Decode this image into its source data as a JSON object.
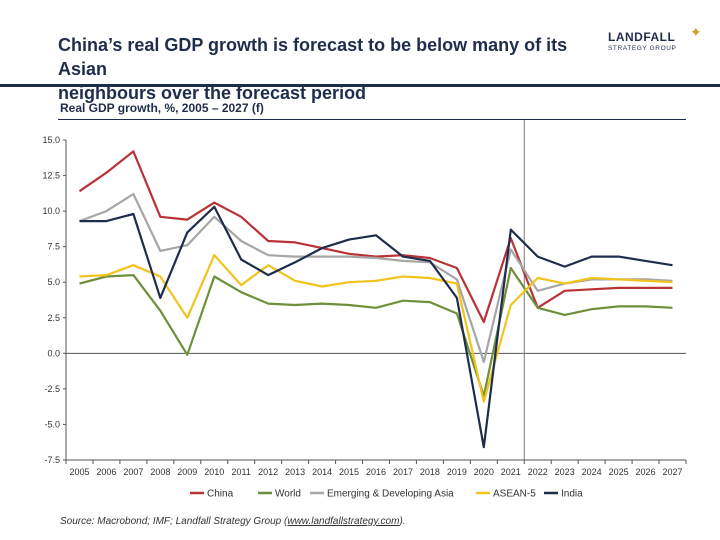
{
  "header": {
    "title_line1": "China’s real GDP growth is forecast to be below many of its Asian",
    "title_line2": "neighbours over the forecast period",
    "subtitle": "Real GDP growth, %, 2005 – 2027 (f)"
  },
  "logo": {
    "name": "LANDFALL",
    "sub": "STRATEGY GROUP",
    "star": "✦"
  },
  "source": {
    "prefix": "Source: Macrobond; IMF; Landfall Strategy Group (",
    "link": "www.landfallstrategy.com",
    "suffix": ")."
  },
  "chart_data": {
    "type": "line",
    "title": "Real GDP growth, %, 2005 – 2027 (f)",
    "xlabel": "",
    "ylabel": "",
    "categories": [
      "2005",
      "2006",
      "2007",
      "2008",
      "2009",
      "2010",
      "2011",
      "2012",
      "2013",
      "2014",
      "2015",
      "2016",
      "2017",
      "2018",
      "2019",
      "2020",
      "2021",
      "2022",
      "2023",
      "2024",
      "2025",
      "2026",
      "2027"
    ],
    "ylim": [
      -7.5,
      15.0
    ],
    "yticks": [
      15.0,
      12.5,
      10.0,
      7.5,
      5.0,
      2.5,
      0.0,
      -2.5,
      -5.0,
      -7.5
    ],
    "ytick_labels": [
      "15.0",
      "12.5",
      "10.0",
      "7.5",
      "5.0",
      "2.5",
      "0.0",
      "-2.5",
      "-5.0",
      "-7.5"
    ],
    "forecast_start": "2022",
    "legend_position": "bottom",
    "series": [
      {
        "name": "China",
        "color": "#b83236",
        "values": [
          11.4,
          12.7,
          14.2,
          9.6,
          9.4,
          10.6,
          9.6,
          7.9,
          7.8,
          7.4,
          7.0,
          6.8,
          6.9,
          6.7,
          6.0,
          2.2,
          8.1,
          3.2,
          4.4,
          4.5,
          4.6,
          4.6,
          4.6
        ]
      },
      {
        "name": "World",
        "color": "#6f8f3a",
        "values": [
          4.9,
          5.4,
          5.5,
          3.0,
          -0.1,
          5.4,
          4.3,
          3.5,
          3.4,
          3.5,
          3.4,
          3.2,
          3.7,
          3.6,
          2.8,
          -3.0,
          6.0,
          3.2,
          2.7,
          3.1,
          3.3,
          3.3,
          3.2
        ]
      },
      {
        "name": "Emerging & Developing Asia",
        "color": "#a6a6a6",
        "values": [
          9.3,
          10.0,
          11.2,
          7.2,
          7.6,
          9.6,
          7.9,
          6.9,
          6.8,
          6.8,
          6.8,
          6.7,
          6.5,
          6.4,
          5.2,
          -0.6,
          7.3,
          4.4,
          4.9,
          5.2,
          5.2,
          5.2,
          5.1
        ]
      },
      {
        "name": "ASEAN-5",
        "color": "#f2c31a",
        "values": [
          5.4,
          5.5,
          6.2,
          5.4,
          2.5,
          6.9,
          4.8,
          6.2,
          5.1,
          4.7,
          5.0,
          5.1,
          5.4,
          5.3,
          4.9,
          -3.4,
          3.4,
          5.3,
          4.9,
          5.3,
          5.2,
          5.1,
          5.0
        ]
      },
      {
        "name": "India",
        "color": "#1f2d4d",
        "values": [
          9.3,
          9.3,
          9.8,
          3.9,
          8.5,
          10.3,
          6.6,
          5.5,
          6.4,
          7.4,
          8.0,
          8.3,
          6.8,
          6.5,
          3.9,
          -6.6,
          8.7,
          6.8,
          6.1,
          6.8,
          6.8,
          6.5,
          6.2
        ]
      }
    ]
  }
}
